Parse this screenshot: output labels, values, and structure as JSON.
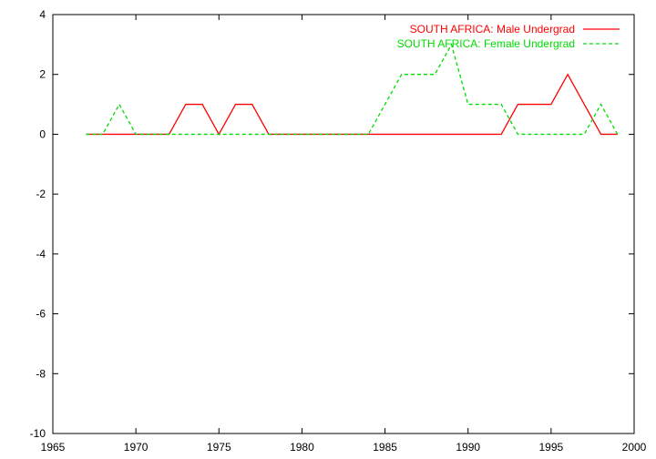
{
  "chart_data": {
    "type": "line",
    "title": "",
    "xlabel": "",
    "ylabel": "",
    "xlim": [
      1965,
      2000
    ],
    "ylim": [
      -10,
      4
    ],
    "xticks": [
      1965,
      1970,
      1975,
      1980,
      1985,
      1990,
      1995,
      2000
    ],
    "yticks": [
      -10,
      -8,
      -6,
      -4,
      -2,
      0,
      2,
      4
    ],
    "grid": false,
    "legend_position": "top-right",
    "x": [
      1967,
      1968,
      1969,
      1970,
      1971,
      1972,
      1973,
      1974,
      1975,
      1976,
      1977,
      1978,
      1979,
      1980,
      1981,
      1982,
      1983,
      1984,
      1985,
      1986,
      1987,
      1988,
      1989,
      1990,
      1991,
      1992,
      1993,
      1994,
      1995,
      1996,
      1997,
      1998,
      1999
    ],
    "series": [
      {
        "name": "SOUTH AFRICA: Male Undergrad",
        "color": "#ff0000",
        "dash": "solid",
        "values": [
          0,
          0,
          0,
          0,
          0,
          0,
          1,
          1,
          0,
          1,
          1,
          0,
          0,
          0,
          0,
          0,
          0,
          0,
          0,
          0,
          0,
          0,
          0,
          0,
          0,
          0,
          1,
          1,
          1,
          2,
          1,
          0,
          0
        ]
      },
      {
        "name": "SOUTH AFRICA: Female Undergrad",
        "color": "#00dd00",
        "dash": "dashed",
        "values": [
          0,
          0,
          1,
          0,
          0,
          0,
          0,
          0,
          0,
          0,
          0,
          0,
          0,
          0,
          0,
          0,
          0,
          0,
          1,
          2,
          2,
          2,
          3,
          1,
          1,
          1,
          0,
          0,
          0,
          0,
          0,
          1,
          0
        ]
      }
    ]
  }
}
